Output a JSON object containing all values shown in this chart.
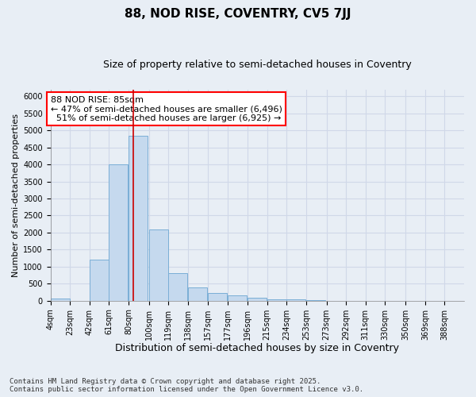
{
  "title": "88, NOD RISE, COVENTRY, CV5 7JJ",
  "subtitle": "Size of property relative to semi-detached houses in Coventry",
  "xlabel": "Distribution of semi-detached houses by size in Coventry",
  "ylabel": "Number of semi-detached properties",
  "bar_color": "#c5d9ee",
  "bar_edge_color": "#7aaed6",
  "background_color": "#e8eef5",
  "grid_color": "#d0d8e8",
  "annotation_text": "88 NOD RISE: 85sqm\n← 47% of semi-detached houses are smaller (6,496)\n  51% of semi-detached houses are larger (6,925) →",
  "vline_x": 85,
  "vline_color": "#cc0000",
  "categories": [
    "4sqm",
    "23sqm",
    "42sqm",
    "61sqm",
    "80sqm",
    "100sqm",
    "119sqm",
    "138sqm",
    "157sqm",
    "177sqm",
    "196sqm",
    "215sqm",
    "234sqm",
    "253sqm",
    "273sqm",
    "292sqm",
    "311sqm",
    "330sqm",
    "350sqm",
    "369sqm",
    "388sqm"
  ],
  "bin_edges": [
    4,
    23,
    42,
    61,
    80,
    100,
    119,
    138,
    157,
    177,
    196,
    215,
    234,
    253,
    273,
    292,
    311,
    330,
    350,
    369,
    388
  ],
  "values": [
    70,
    0,
    1200,
    4000,
    4850,
    2100,
    800,
    400,
    220,
    150,
    80,
    50,
    30,
    10,
    5,
    3,
    2,
    1,
    0,
    0,
    0
  ],
  "ylim": [
    0,
    6200
  ],
  "yticks": [
    0,
    500,
    1000,
    1500,
    2000,
    2500,
    3000,
    3500,
    4000,
    4500,
    5000,
    5500,
    6000
  ],
  "footnote": "Contains HM Land Registry data © Crown copyright and database right 2025.\nContains public sector information licensed under the Open Government Licence v3.0.",
  "title_fontsize": 11,
  "subtitle_fontsize": 9,
  "xlabel_fontsize": 9,
  "ylabel_fontsize": 8,
  "tick_fontsize": 7,
  "annot_fontsize": 8,
  "footnote_fontsize": 6.5
}
